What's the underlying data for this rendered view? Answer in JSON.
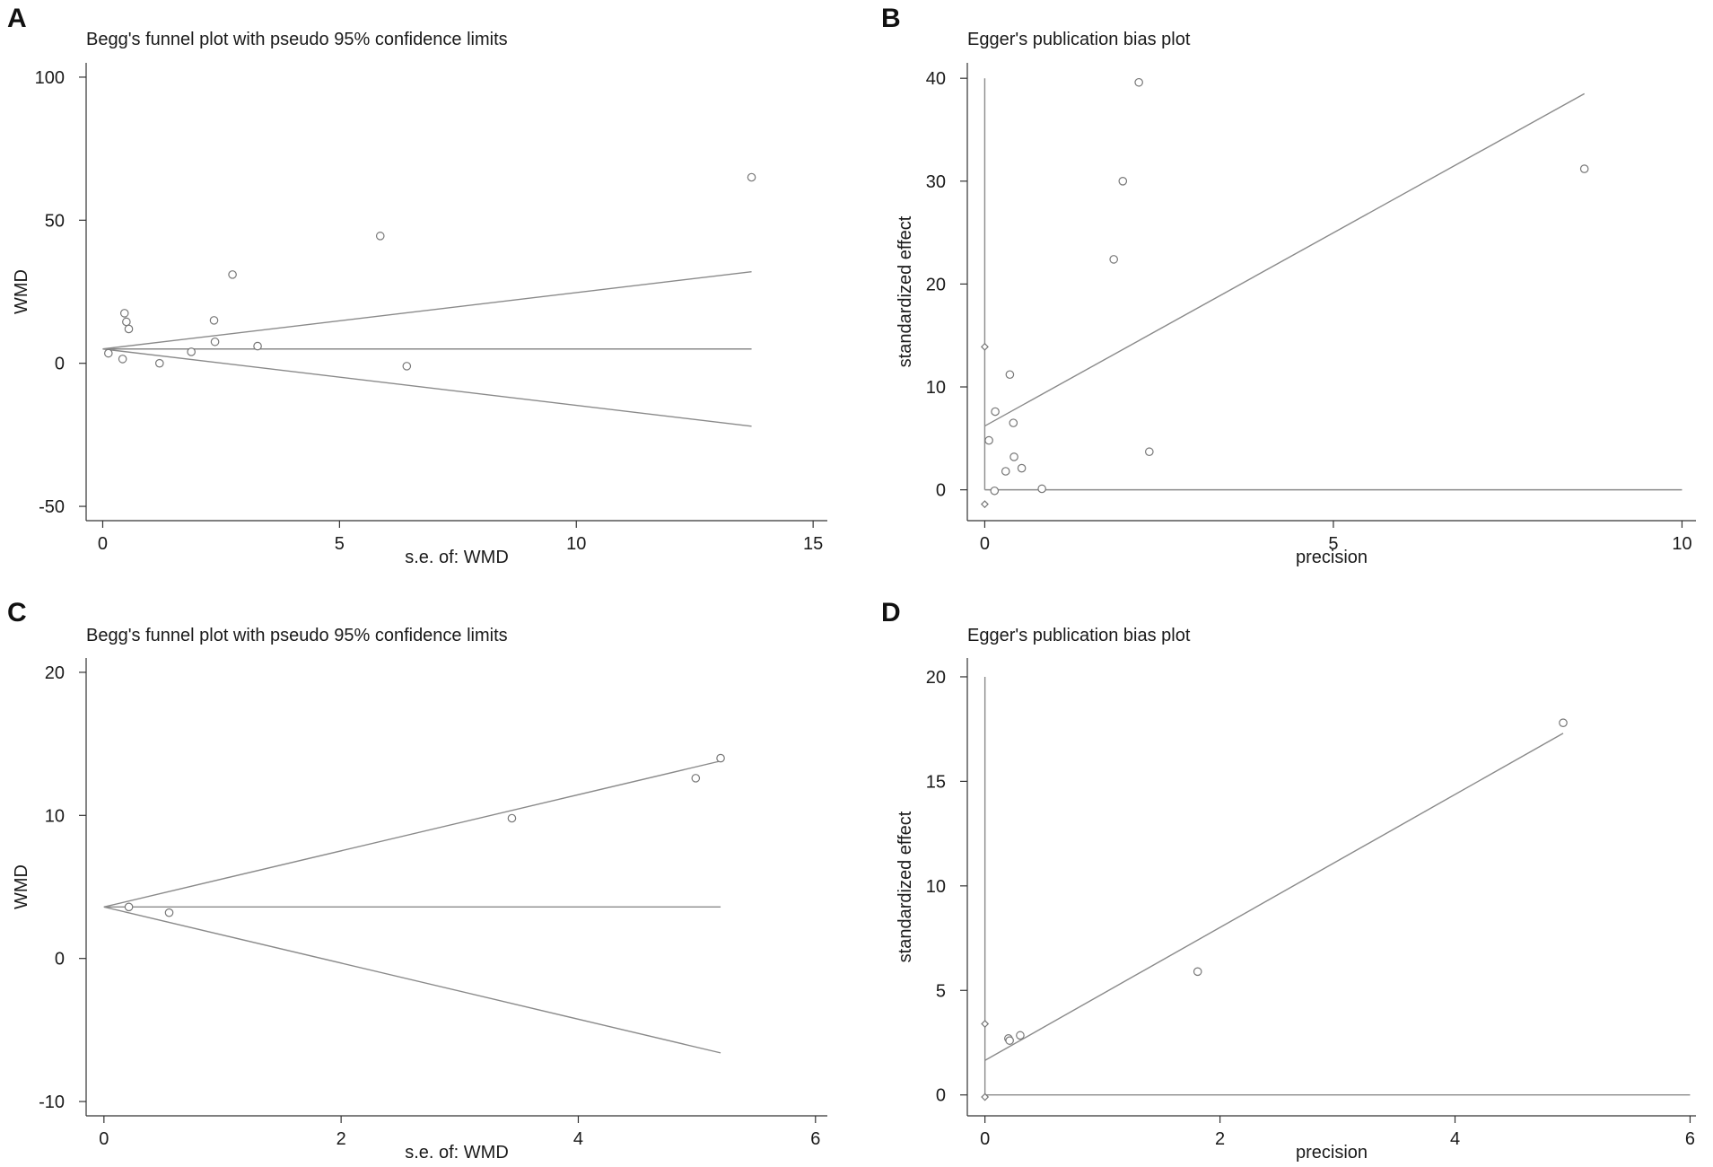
{
  "figure": {
    "panels": [
      "A",
      "B",
      "C",
      "D"
    ]
  },
  "chart_data": [
    {
      "panel": "A",
      "type": "scatter",
      "title": "Begg's funnel plot with pseudo 95% confidence limits",
      "xlabel": "s.e. of: WMD",
      "ylabel": "WMD",
      "xlim": [
        -0.35,
        15.3
      ],
      "ylim": [
        -55,
        105
      ],
      "xticks": [
        0,
        5,
        10,
        15
      ],
      "xtick_labels": [
        "0",
        "5",
        "10",
        "15"
      ],
      "yticks": [
        100,
        50,
        0,
        -50
      ],
      "ytick_labels": [
        "100",
        "50",
        "0",
        "-50"
      ],
      "axes": "left-bottom",
      "series": [
        {
          "name": "studies",
          "style": "circle",
          "x": [
            0.12,
            0.42,
            0.46,
            0.5,
            0.55,
            1.2,
            1.87,
            2.35,
            2.37,
            2.74,
            3.27,
            5.86,
            6.42,
            13.7
          ],
          "y": [
            3.5,
            1.5,
            17.5,
            14.5,
            12,
            0,
            4,
            15,
            7.5,
            31,
            6,
            44.5,
            -1,
            65
          ]
        }
      ],
      "lines": [
        {
          "name": "pooled estimate",
          "x": [
            0,
            13.7
          ],
          "y": [
            5,
            5
          ]
        },
        {
          "name": "upper pseudo 95% limit",
          "x": [
            0,
            13.7
          ],
          "y": [
            5,
            32
          ]
        },
        {
          "name": "lower pseudo 95% limit",
          "x": [
            0,
            13.7
          ],
          "y": [
            5,
            -22
          ]
        }
      ]
    },
    {
      "panel": "B",
      "type": "scatter",
      "title": "Egger's publication bias plot",
      "xlabel": "precision",
      "ylabel": "standardized effect",
      "xlim": [
        -0.25,
        10.2
      ],
      "ylim": [
        -3,
        41.5
      ],
      "xticks": [
        0,
        5,
        10
      ],
      "xtick_labels": [
        "0",
        "5",
        "10"
      ],
      "yticks": [
        40,
        30,
        20,
        10,
        0
      ],
      "ytick_labels": [
        "40",
        "30",
        "20",
        "10",
        "0"
      ],
      "axes": "left-bottom",
      "series": [
        {
          "name": "studies",
          "style": "circle",
          "x": [
            0.06,
            0.15,
            0.14,
            0.3,
            0.36,
            0.41,
            0.42,
            0.53,
            0.82,
            1.85,
            1.98,
            2.21,
            2.36,
            8.6
          ],
          "y": [
            4.8,
            7.6,
            -0.1,
            1.8,
            11.2,
            6.5,
            3.2,
            2.1,
            0.1,
            22.4,
            30,
            39.6,
            3.7,
            31.2
          ]
        },
        {
          "name": "intercept estimates",
          "style": "diamond",
          "x": [
            0,
            0
          ],
          "y": [
            13.9,
            -1.4
          ]
        }
      ],
      "lines": [
        {
          "name": "regression line",
          "x": [
            0,
            8.6
          ],
          "y": [
            6.2,
            38.5
          ]
        },
        {
          "name": "zero line",
          "x": [
            0,
            10
          ],
          "y": [
            0,
            0
          ]
        },
        {
          "name": "vertical axis at zero precision",
          "x": [
            0,
            0
          ],
          "y": [
            0,
            40
          ]
        }
      ]
    },
    {
      "panel": "C",
      "type": "scatter",
      "title": "Begg's funnel plot with pseudo 95% confidence limits",
      "xlabel": "s.e. of: WMD",
      "ylabel": "WMD",
      "xlim": [
        -0.15,
        6.1
      ],
      "ylim": [
        -11,
        21
      ],
      "xticks": [
        0,
        2,
        4,
        6
      ],
      "xtick_labels": [
        "0",
        "2",
        "4",
        "6"
      ],
      "yticks": [
        20,
        10,
        0,
        -10
      ],
      "ytick_labels": [
        "20",
        "10",
        "0",
        "-10"
      ],
      "axes": "left-bottom",
      "series": [
        {
          "name": "studies",
          "style": "circle",
          "x": [
            0.21,
            0.55,
            3.44,
            4.99,
            5.2
          ],
          "y": [
            3.6,
            3.2,
            9.8,
            12.6,
            14
          ]
        }
      ],
      "lines": [
        {
          "name": "pooled estimate",
          "x": [
            0,
            5.2
          ],
          "y": [
            3.6,
            3.6
          ]
        },
        {
          "name": "upper pseudo 95% limit",
          "x": [
            0,
            5.2
          ],
          "y": [
            3.6,
            13.8
          ]
        },
        {
          "name": "lower pseudo 95% limit",
          "x": [
            0,
            5.2
          ],
          "y": [
            3.6,
            -6.6
          ]
        }
      ]
    },
    {
      "panel": "D",
      "type": "scatter",
      "title": "Egger's publication bias plot",
      "xlabel": "precision",
      "ylabel": "standardized effect",
      "xlim": [
        -0.15,
        6.05
      ],
      "ylim": [
        -1,
        20.9
      ],
      "xticks": [
        0,
        2,
        4,
        6
      ],
      "xtick_labels": [
        "0",
        "2",
        "4",
        "6"
      ],
      "yticks": [
        20,
        15,
        10,
        5,
        0
      ],
      "ytick_labels": [
        "20",
        "15",
        "10",
        "5",
        "0"
      ],
      "axes": "left-bottom",
      "series": [
        {
          "name": "studies",
          "style": "circle",
          "x": [
            0.2,
            0.21,
            0.3,
            1.81,
            4.92
          ],
          "y": [
            2.7,
            2.6,
            2.85,
            5.9,
            17.8
          ]
        },
        {
          "name": "intercept estimates",
          "style": "diamond",
          "x": [
            0,
            0
          ],
          "y": [
            3.4,
            -0.1
          ]
        }
      ],
      "lines": [
        {
          "name": "regression line",
          "x": [
            0,
            4.92
          ],
          "y": [
            1.65,
            17.3
          ]
        },
        {
          "name": "zero line",
          "x": [
            0,
            6
          ],
          "y": [
            0,
            0
          ]
        },
        {
          "name": "vertical axis at zero precision",
          "x": [
            0,
            0
          ],
          "y": [
            0,
            20
          ]
        }
      ]
    }
  ]
}
